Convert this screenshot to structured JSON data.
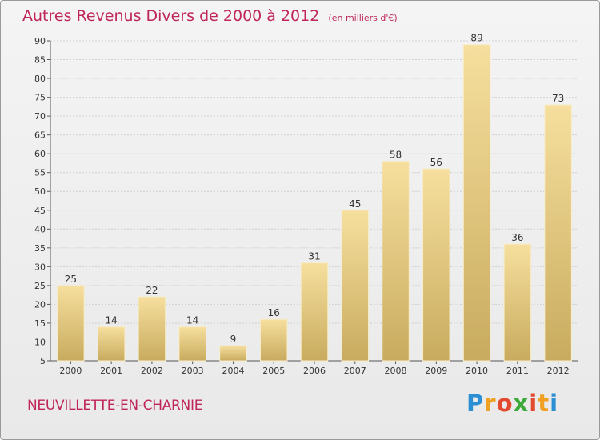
{
  "title": "Autres Revenus Divers de 2000 à 2012",
  "unit_note": "(en milliers d'€)",
  "location": "NEUVILLETTE-EN-CHARNIE",
  "brand": "Proxiti",
  "colors": {
    "title": "#c0265a",
    "bar_light": "#f4dc9a",
    "bar_dark": "#c9ad62",
    "grid": "#d0d0d0"
  },
  "chart_data": {
    "type": "bar",
    "title": "Autres Revenus Divers de 2000 à 2012",
    "subtitle": "(en milliers d'€)",
    "xlabel": "",
    "ylabel": "",
    "categories": [
      "2000",
      "2001",
      "2002",
      "2003",
      "2004",
      "2005",
      "2006",
      "2007",
      "2008",
      "2009",
      "2010",
      "2011",
      "2012"
    ],
    "values": [
      25,
      14,
      22,
      14,
      9,
      16,
      31,
      45,
      58,
      56,
      89,
      36,
      73
    ],
    "ylim": [
      5,
      90
    ],
    "yticks": [
      5,
      10,
      15,
      20,
      25,
      30,
      35,
      40,
      45,
      50,
      55,
      60,
      65,
      70,
      75,
      80,
      85,
      90
    ],
    "grid": true,
    "data_labels": true
  }
}
